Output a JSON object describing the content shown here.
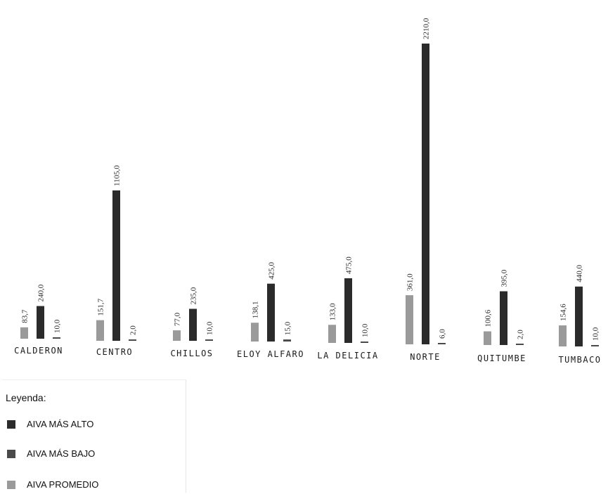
{
  "chart_data": {
    "type": "bar",
    "title": "",
    "xlabel": "",
    "ylabel": "",
    "grid": false,
    "legend_position": "bottom-left",
    "categories": [
      "CALDERON",
      "CENTRO",
      "CHILLOS",
      "ELOY ALFARO",
      "LA DELICIA",
      "NORTE",
      "QUITUMBE",
      "TUMBACO"
    ],
    "series": [
      {
        "name": "AIVA PROMEDIO",
        "color": "#9a9a9a",
        "values": [
          83.7,
          151.7,
          77.0,
          138.1,
          133.0,
          361.0,
          100.6,
          154.6
        ],
        "labels": [
          "83,7",
          "151,7",
          "77,0",
          "138,1",
          "133,0",
          "361,0",
          "100,6",
          "154,6"
        ]
      },
      {
        "name": "AIVA MÁS ALTO",
        "color": "#2b2b2b",
        "values": [
          240.0,
          1105.0,
          235.0,
          425.0,
          475.0,
          2210.0,
          395.0,
          440.0
        ],
        "labels": [
          "240,0",
          "1105,0",
          "235,0",
          "425,0",
          "475,0",
          "2210,0",
          "395,0",
          "440,0"
        ]
      },
      {
        "name": "AIVA MÁS BAJO",
        "color": "#4a4a4a",
        "values": [
          10.0,
          2.0,
          10.0,
          15.0,
          10.0,
          6.0,
          2.0,
          10.0
        ],
        "labels": [
          "10,0",
          "2,0",
          "10,0",
          "15,0",
          "10,0",
          "6,0",
          "2,0",
          "10,0"
        ]
      }
    ]
  },
  "legend": {
    "title": "Leyenda:",
    "items": [
      {
        "label": "AIVA MÁS ALTO",
        "color": "#2b2b2b"
      },
      {
        "label": "AIVA MÁS BAJO",
        "color": "#4a4a4a"
      },
      {
        "label": "AIVA PROMEDIO",
        "color": "#9a9a9a"
      }
    ]
  }
}
